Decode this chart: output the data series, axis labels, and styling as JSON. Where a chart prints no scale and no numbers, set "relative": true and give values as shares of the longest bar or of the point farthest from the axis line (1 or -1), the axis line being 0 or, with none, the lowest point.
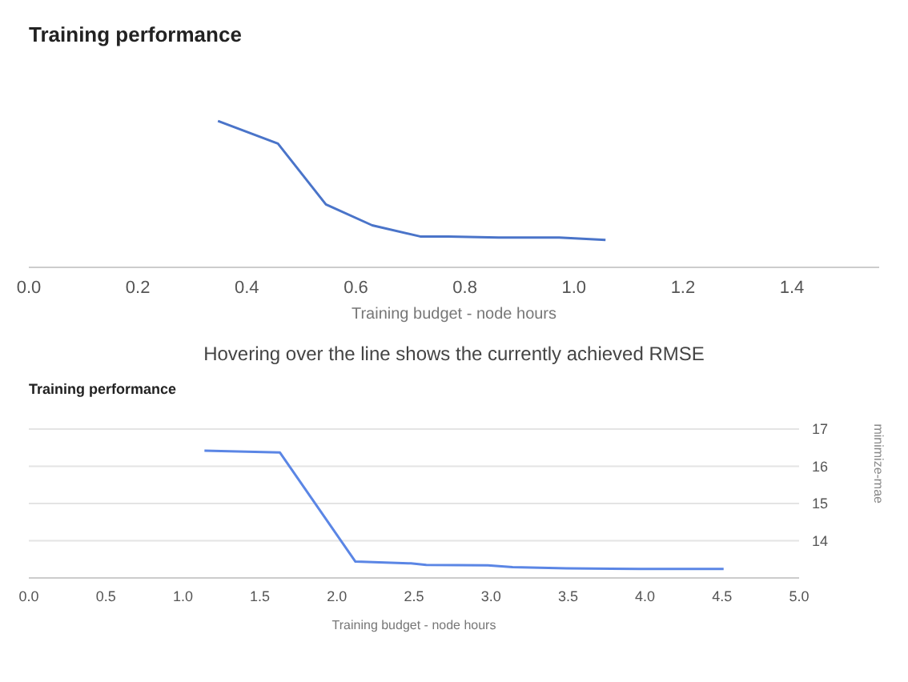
{
  "chart_data": [
    {
      "type": "line",
      "title": "Training performance",
      "xlabel": "Training budget - node hours",
      "relative": true,
      "legend": false,
      "marker": "none",
      "line_style": "solid",
      "x": [
        0.347,
        0.457,
        0.545,
        0.63,
        0.718,
        0.77,
        0.862,
        0.973,
        1.058
      ],
      "xlim": [
        0,
        1.56
      ],
      "xticks": [
        {
          "value": 0,
          "label": "0.0"
        },
        {
          "value": 0.2,
          "label": "0.2"
        },
        {
          "value": 0.4,
          "label": "0.4"
        },
        {
          "value": 0.6,
          "label": "0.6"
        },
        {
          "value": 0.8,
          "label": "0.8"
        },
        {
          "value": 1,
          "label": "1.0"
        },
        {
          "value": 1.2,
          "label": "1.2"
        },
        {
          "value": 1.4,
          "label": "1.4"
        }
      ],
      "series": [
        {
          "color": "#4a74c9",
          "values": [
            1,
            0.845,
            0.43,
            0.287,
            0.211,
            0.211,
            0.203,
            0.203,
            0.187
          ]
        }
      ],
      "annotations": [
        "Hovering over the line shows the currently achieved RMSE"
      ]
    },
    {
      "type": "line",
      "title": "Training performance",
      "xlabel": "Training budget - node hours",
      "y2label": "minimize-mae",
      "grid": "y",
      "legend": false,
      "marker": "none",
      "line_style": "solid",
      "x": [
        1.14,
        1.63,
        2.12,
        2.48,
        2.58,
        2.98,
        3.14,
        3.49,
        3.97,
        4.51
      ],
      "xlim": [
        0,
        5
      ],
      "xticks": [
        {
          "value": 0,
          "label": "0.0"
        },
        {
          "value": 0.5,
          "label": "0.5"
        },
        {
          "value": 1,
          "label": "1.0"
        },
        {
          "value": 1.5,
          "label": "1.5"
        },
        {
          "value": 2,
          "label": "2.0"
        },
        {
          "value": 2.5,
          "label": "2.5"
        },
        {
          "value": 3,
          "label": "3.0"
        },
        {
          "value": 3.5,
          "label": "3.5"
        },
        {
          "value": 4,
          "label": "4.0"
        },
        {
          "value": 4.5,
          "label": "4.5"
        },
        {
          "value": 5,
          "label": "5.0"
        }
      ],
      "y2lim": [
        13,
        17
      ],
      "y2ticks": [
        14,
        15,
        16,
        17
      ],
      "series": [
        {
          "color": "#5b86e5",
          "axis": "y2",
          "values": [
            16.42,
            16.37,
            13.44,
            13.39,
            13.35,
            13.34,
            13.29,
            13.26,
            13.24,
            13.24
          ]
        }
      ]
    }
  ]
}
